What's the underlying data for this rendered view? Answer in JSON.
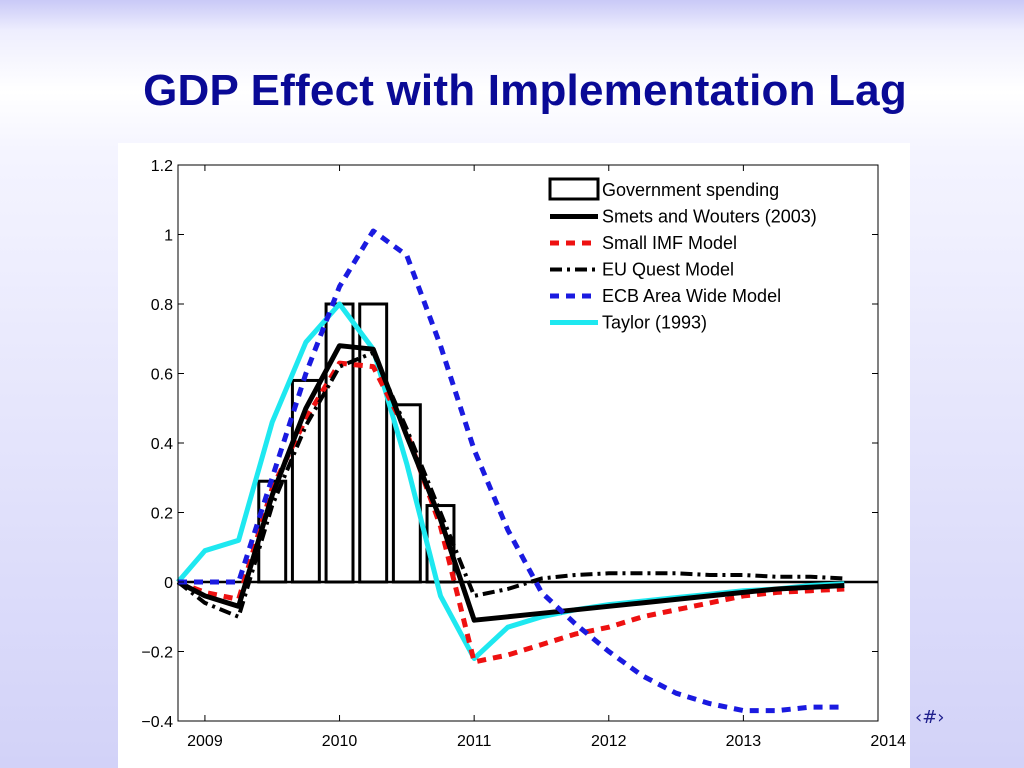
{
  "slide": {
    "title": "GDP Effect with Implementation Lag",
    "slide_number": "‹#›"
  },
  "chart_data": {
    "type": "line",
    "xlim": [
      2008.8,
      2014
    ],
    "ylim": [
      -0.4,
      1.2
    ],
    "x_ticks": [
      2009,
      2010,
      2011,
      2012,
      2013,
      2014
    ],
    "x_tick_labels": [
      "2009",
      "2010",
      "2011",
      "2012",
      "2013",
      "2014"
    ],
    "y_ticks": [
      -0.4,
      -0.2,
      0,
      0.2,
      0.4,
      0.6,
      0.8,
      1,
      1.2
    ],
    "y_tick_labels": [
      "−0.4",
      "−0.2",
      "0",
      "0.2",
      "0.4",
      "0.6",
      "0.8",
      "1",
      "1.2"
    ],
    "grid": false,
    "legend_position": "top-right",
    "bars": {
      "name": "Government spending",
      "width": 0.2,
      "x": [
        2009.5,
        2009.75,
        2010,
        2010.25,
        2010.5,
        2010.75
      ],
      "values": [
        0.29,
        0.58,
        0.8,
        0.8,
        0.51,
        0.22
      ],
      "color": "#000000"
    },
    "series": [
      {
        "name": "Smets and Wouters (2003)",
        "color": "#000000",
        "dash": "solid",
        "width": 5,
        "x": [
          2008.8,
          2009,
          2009.25,
          2009.5,
          2009.75,
          2010,
          2010.25,
          2010.5,
          2010.75,
          2011,
          2011.25,
          2011.5,
          2011.75,
          2012,
          2012.25,
          2012.5,
          2012.75,
          2013,
          2013.25,
          2013.5,
          2013.75
        ],
        "y": [
          0,
          -0.04,
          -0.07,
          0.25,
          0.5,
          0.68,
          0.67,
          0.42,
          0.18,
          -0.11,
          -0.1,
          -0.09,
          -0.08,
          -0.07,
          -0.06,
          -0.05,
          -0.04,
          -0.03,
          -0.02,
          -0.015,
          -0.01
        ]
      },
      {
        "name": "Small IMF Model",
        "color": "#ee1111",
        "dash": "dash",
        "width": 5,
        "x": [
          2008.8,
          2009,
          2009.25,
          2009.5,
          2009.75,
          2010,
          2010.25,
          2010.5,
          2010.75,
          2011,
          2011.25,
          2011.5,
          2011.75,
          2012,
          2012.25,
          2012.5,
          2012.75,
          2013,
          2013.25,
          2013.5,
          2013.75
        ],
        "y": [
          0,
          -0.03,
          -0.05,
          0.27,
          0.47,
          0.63,
          0.62,
          0.43,
          0.16,
          -0.23,
          -0.21,
          -0.18,
          -0.15,
          -0.13,
          -0.1,
          -0.08,
          -0.06,
          -0.04,
          -0.03,
          -0.025,
          -0.02
        ]
      },
      {
        "name": "EU Quest Model",
        "color": "#000000",
        "dash": "dashdot",
        "width": 4,
        "x": [
          2008.8,
          2009,
          2009.25,
          2009.5,
          2009.75,
          2010,
          2010.25,
          2010.5,
          2010.75,
          2011,
          2011.25,
          2011.5,
          2011.75,
          2012,
          2012.25,
          2012.5,
          2012.75,
          2013,
          2013.25,
          2013.5,
          2013.75
        ],
        "y": [
          0,
          -0.06,
          -0.1,
          0.22,
          0.45,
          0.62,
          0.66,
          0.44,
          0.2,
          -0.04,
          -0.02,
          0.01,
          0.02,
          0.025,
          0.025,
          0.025,
          0.02,
          0.02,
          0.015,
          0.015,
          0.01
        ]
      },
      {
        "name": "ECB Area Wide Model",
        "color": "#1a1ae0",
        "dash": "dash",
        "width": 5,
        "x": [
          2008.8,
          2009,
          2009.25,
          2009.5,
          2009.75,
          2010,
          2010.25,
          2010.5,
          2010.75,
          2011,
          2011.25,
          2011.5,
          2011.75,
          2012,
          2012.25,
          2012.5,
          2012.75,
          2013,
          2013.25,
          2013.5,
          2013.75
        ],
        "y": [
          0,
          0,
          0,
          0.3,
          0.6,
          0.85,
          1.01,
          0.94,
          0.68,
          0.38,
          0.15,
          -0.03,
          -0.12,
          -0.2,
          -0.27,
          -0.32,
          -0.35,
          -0.37,
          -0.37,
          -0.36,
          -0.36
        ]
      },
      {
        "name": "Taylor (1993)",
        "color": "#1ee8f0",
        "dash": "solid",
        "width": 5,
        "x": [
          2008.8,
          2009,
          2009.25,
          2009.5,
          2009.75,
          2010,
          2010.25,
          2010.5,
          2010.75,
          2011,
          2011.25,
          2011.5,
          2011.75,
          2012,
          2012.25,
          2012.5,
          2012.75,
          2013,
          2013.25,
          2013.5,
          2013.75
        ],
        "y": [
          0,
          0.09,
          0.12,
          0.46,
          0.69,
          0.8,
          0.67,
          0.34,
          -0.04,
          -0.22,
          -0.13,
          -0.1,
          -0.08,
          -0.065,
          -0.055,
          -0.045,
          -0.035,
          -0.025,
          -0.02,
          -0.01,
          -0.005
        ]
      }
    ]
  }
}
